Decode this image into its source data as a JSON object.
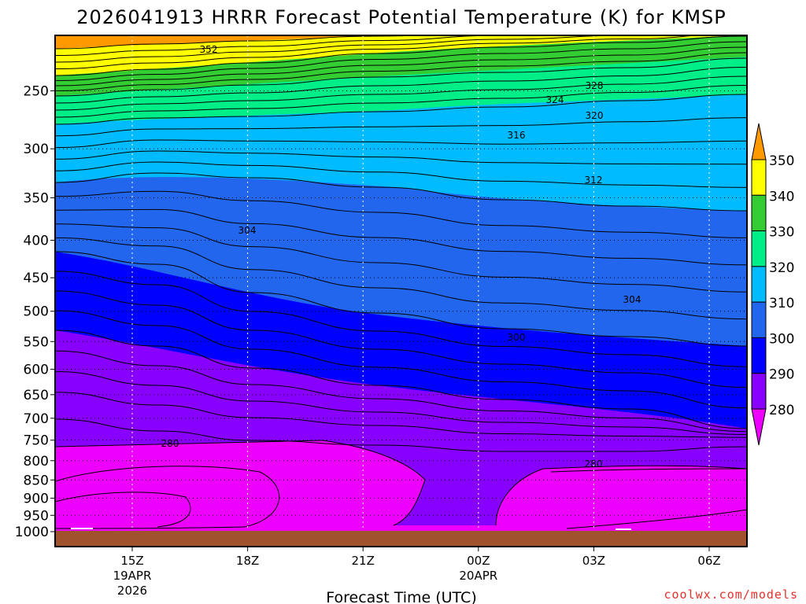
{
  "chart_data": {
    "type": "contour",
    "title": "2026041913 HRRR Forecast Potential Temperature (K) for KMSP",
    "xlabel": "Forecast Time (UTC)",
    "ylabel": "",
    "x_ticks": [
      {
        "label": "15Z",
        "date": "19APR",
        "year": "2026"
      },
      {
        "label": "18Z",
        "date": "",
        "year": ""
      },
      {
        "label": "21Z",
        "date": "",
        "year": ""
      },
      {
        "label": "00Z",
        "date": "20APR",
        "year": ""
      },
      {
        "label": "03Z",
        "date": "",
        "year": ""
      },
      {
        "label": "06Z",
        "date": "",
        "year": ""
      }
    ],
    "y_ticks": [
      250,
      300,
      350,
      400,
      450,
      500,
      550,
      600,
      650,
      700,
      750,
      800,
      850,
      900,
      950,
      1000
    ],
    "y_axis": "pressure (hPa), log scale, decreasing upward",
    "colorbar": {
      "labels": [
        350,
        340,
        330,
        320,
        310,
        300,
        290,
        280
      ],
      "colors": [
        "#ff9900",
        "#ffff00",
        "#33cc33",
        "#00ee88",
        "#00bbff",
        "#2266ee",
        "#0000ff",
        "#8800ff",
        "#ee00ff"
      ],
      "extend": "both"
    },
    "contour_labels": [
      {
        "value": "352"
      },
      {
        "value": "328"
      },
      {
        "value": "324"
      },
      {
        "value": "320"
      },
      {
        "value": "316"
      },
      {
        "value": "312"
      },
      {
        "value": "304"
      },
      {
        "value": "304"
      },
      {
        "value": "300"
      },
      {
        "value": "280"
      },
      {
        "value": "280"
      }
    ],
    "grid": true
  },
  "credit": "coolwx.com/models"
}
